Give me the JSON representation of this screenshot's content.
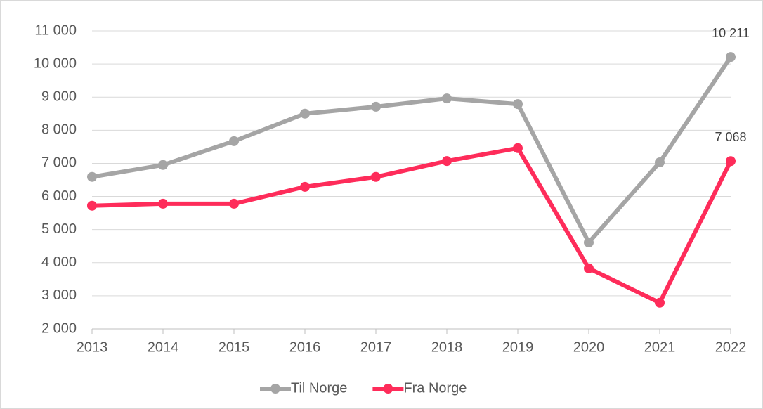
{
  "chart_data": {
    "type": "line",
    "categories": [
      "2013",
      "2014",
      "2015",
      "2016",
      "2017",
      "2018",
      "2019",
      "2020",
      "2021",
      "2022"
    ],
    "series": [
      {
        "name": "Til Norge",
        "color": "#a5a5a5",
        "values": [
          6590,
          6950,
          7670,
          8500,
          8710,
          8960,
          8790,
          4610,
          7030,
          10211
        ],
        "value_labels": [
          null,
          null,
          null,
          null,
          null,
          null,
          null,
          null,
          null,
          "10 211"
        ]
      },
      {
        "name": "Fra Norge",
        "color": "#fe2c5a",
        "values": [
          5720,
          5780,
          5780,
          6290,
          6590,
          7070,
          7460,
          3830,
          2790,
          7068
        ],
        "value_labels": [
          null,
          null,
          null,
          null,
          null,
          null,
          null,
          null,
          null,
          "7 068"
        ]
      }
    ],
    "ylim": [
      2000,
      11000
    ],
    "yticks": [
      {
        "value": 2000,
        "label": "2 000"
      },
      {
        "value": 3000,
        "label": "3 000"
      },
      {
        "value": 4000,
        "label": "4 000"
      },
      {
        "value": 5000,
        "label": "5 000"
      },
      {
        "value": 6000,
        "label": "6 000"
      },
      {
        "value": 7000,
        "label": "7 000"
      },
      {
        "value": 8000,
        "label": "8 000"
      },
      {
        "value": 9000,
        "label": "9 000"
      },
      {
        "value": 10000,
        "label": "10 000"
      },
      {
        "value": 11000,
        "label": "11 000"
      }
    ],
    "grid": true,
    "legend": "bottom"
  }
}
